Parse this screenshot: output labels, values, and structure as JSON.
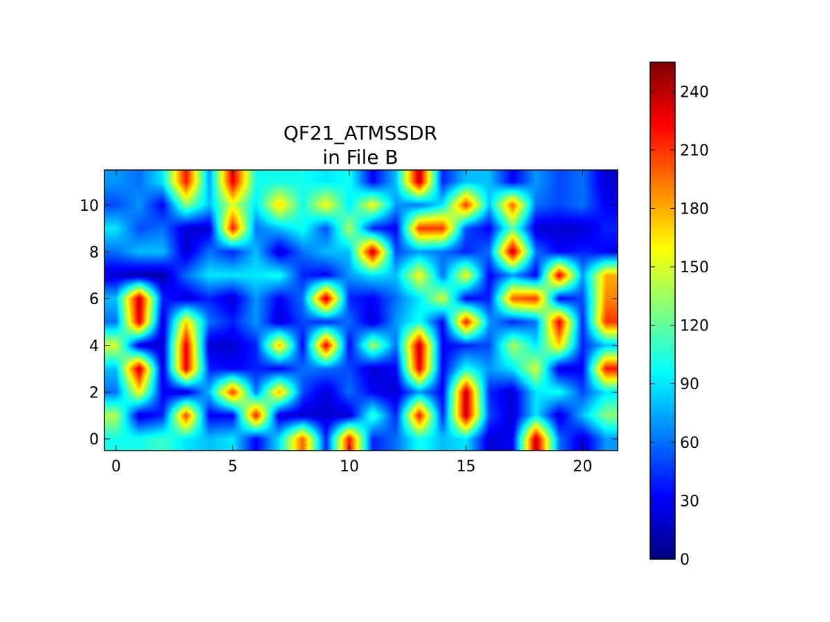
{
  "chart_data": {
    "type": "heatmap",
    "title": "QF21_ATMSSDR",
    "subtitle": "in File B",
    "xlabel": "",
    "ylabel": "",
    "interpolation": "bilinear",
    "colormap": "jet",
    "x_ticks": [
      0,
      5,
      10,
      15,
      20
    ],
    "y_ticks": [
      0,
      2,
      4,
      6,
      8,
      10
    ],
    "xlim": [
      -0.5,
      21.5
    ],
    "ylim": [
      11.5,
      -0.5
    ],
    "colorbar": {
      "range": [
        0,
        255
      ],
      "ticks": [
        0,
        30,
        60,
        90,
        120,
        150,
        180,
        210,
        240
      ],
      "placement": "right"
    },
    "grid": false,
    "rows": 12,
    "cols": 22,
    "values": [
      [
        100,
        100,
        110,
        90,
        80,
        90,
        30,
        90,
        200,
        40,
        220,
        40,
        60,
        100,
        80,
        90,
        20,
        30,
        240,
        60,
        20,
        70
      ],
      [
        140,
        20,
        40,
        210,
        30,
        30,
        220,
        20,
        20,
        20,
        20,
        110,
        40,
        220,
        40,
        240,
        50,
        20,
        90,
        20,
        80,
        130
      ],
      [
        60,
        160,
        30,
        20,
        80,
        210,
        60,
        180,
        50,
        20,
        60,
        30,
        20,
        70,
        30,
        240,
        40,
        20,
        90,
        100,
        50,
        90
      ],
      [
        80,
        240,
        20,
        230,
        40,
        30,
        40,
        30,
        60,
        60,
        50,
        20,
        30,
        230,
        30,
        100,
        70,
        90,
        150,
        20,
        30,
        220
      ],
      [
        150,
        20,
        20,
        230,
        20,
        20,
        40,
        180,
        30,
        230,
        30,
        140,
        60,
        240,
        30,
        40,
        50,
        140,
        90,
        170,
        40,
        80
      ],
      [
        60,
        230,
        20,
        170,
        60,
        40,
        70,
        20,
        50,
        40,
        60,
        20,
        70,
        100,
        30,
        220,
        70,
        40,
        60,
        230,
        40,
        210
      ],
      [
        80,
        240,
        40,
        20,
        40,
        20,
        70,
        30,
        60,
        240,
        40,
        30,
        60,
        90,
        150,
        30,
        40,
        200,
        210,
        30,
        50,
        190
      ],
      [
        20,
        10,
        10,
        60,
        90,
        90,
        90,
        100,
        40,
        30,
        70,
        90,
        80,
        160,
        60,
        160,
        30,
        70,
        30,
        230,
        70,
        180
      ],
      [
        60,
        80,
        80,
        20,
        60,
        40,
        80,
        20,
        60,
        80,
        80,
        240,
        50,
        70,
        60,
        40,
        60,
        240,
        60,
        30,
        40,
        30
      ],
      [
        90,
        50,
        60,
        20,
        20,
        220,
        60,
        80,
        100,
        50,
        140,
        40,
        30,
        210,
        210,
        50,
        30,
        120,
        20,
        20,
        20,
        40
      ],
      [
        50,
        70,
        30,
        130,
        80,
        150,
        90,
        170,
        100,
        160,
        90,
        160,
        70,
        60,
        90,
        210,
        80,
        200,
        60,
        50,
        60,
        30
      ],
      [
        70,
        60,
        90,
        220,
        70,
        230,
        100,
        100,
        100,
        90,
        100,
        30,
        80,
        240,
        40,
        80,
        80,
        30,
        70,
        50,
        60,
        20
      ]
    ]
  }
}
